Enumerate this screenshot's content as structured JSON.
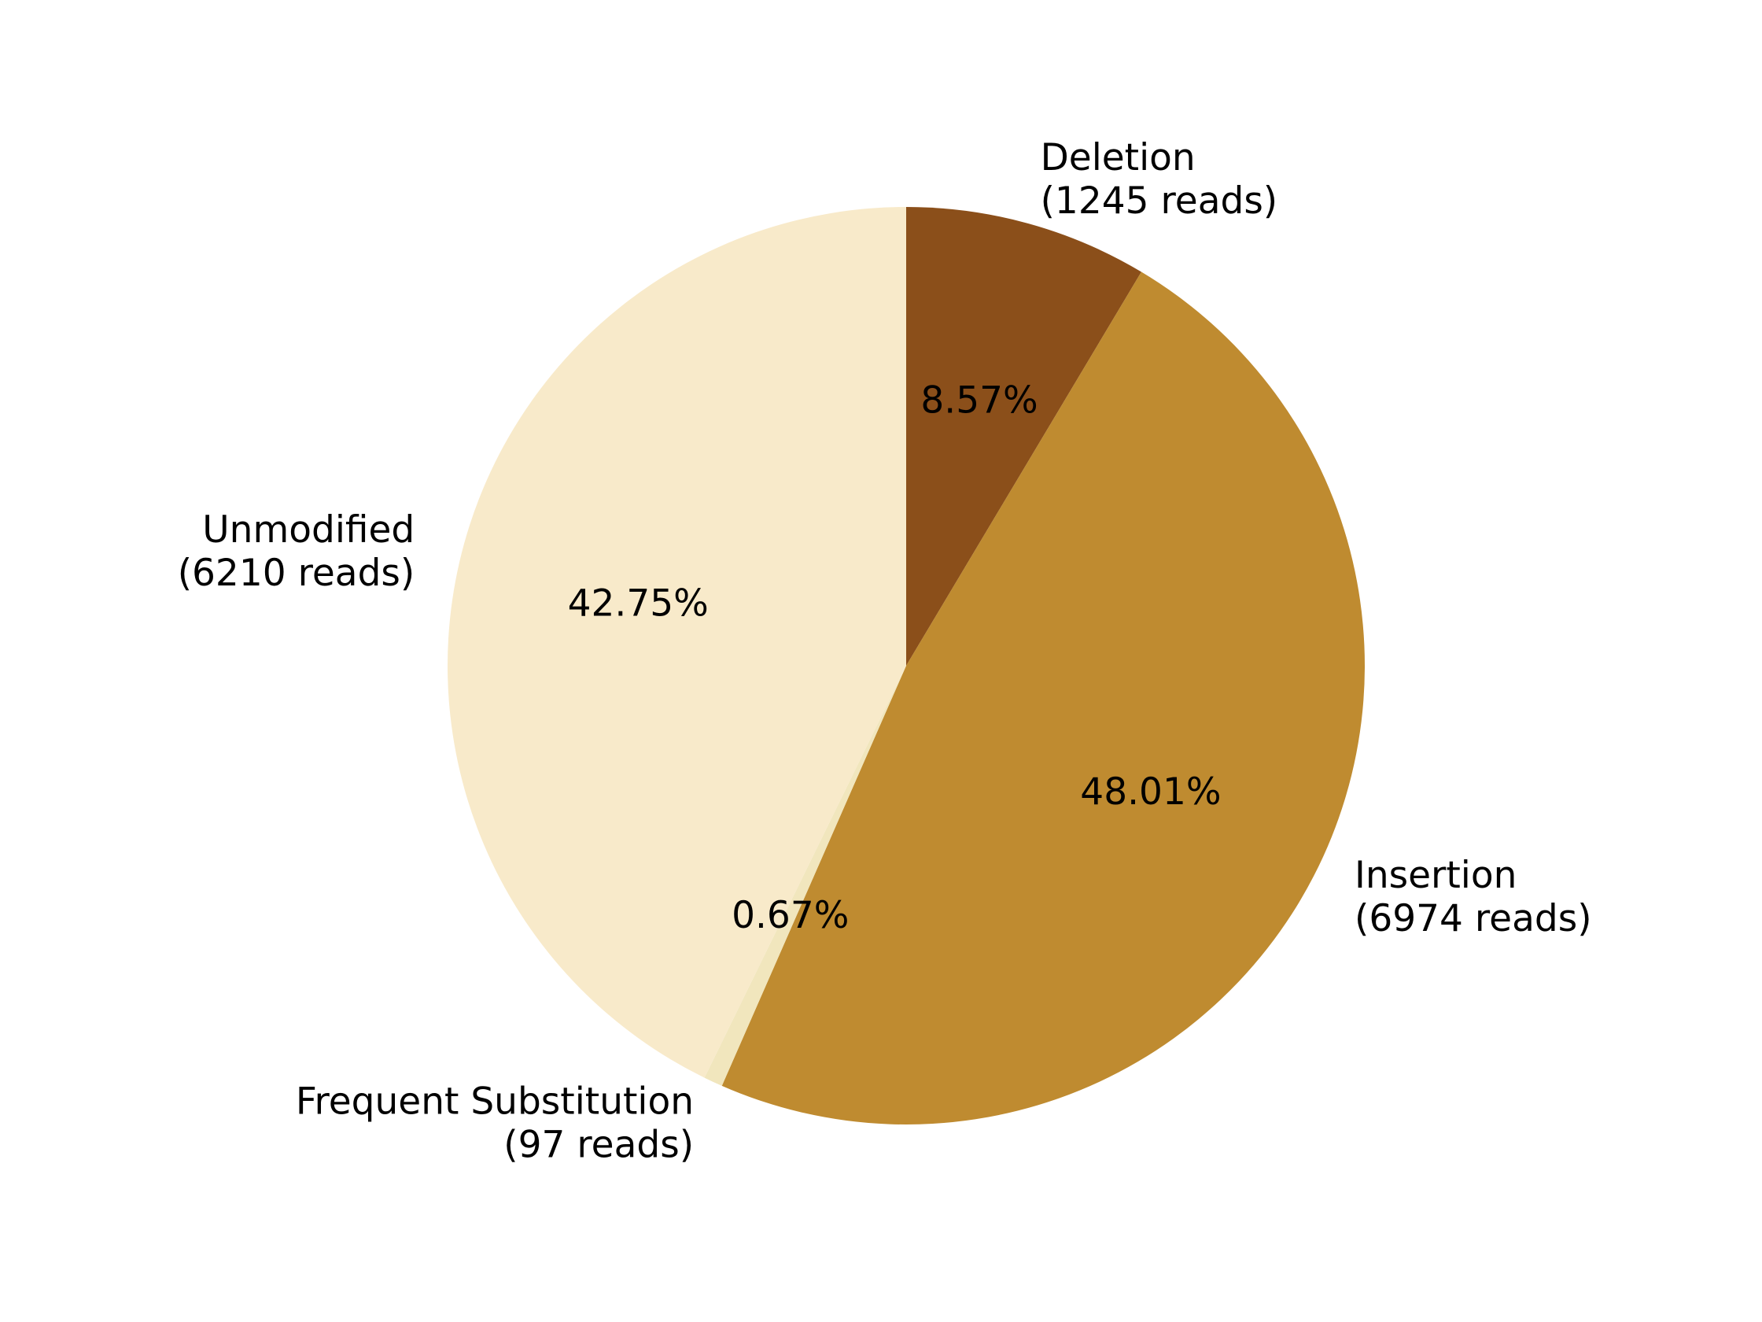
{
  "chart_data": {
    "type": "pie",
    "title": "",
    "start_angle_deg": 90,
    "direction": "clockwise",
    "slices": [
      {
        "label": "Deletion",
        "reads_label": "(1245 reads)",
        "reads": 1245,
        "percent_label": "8.57%",
        "percent": 8.57,
        "color": "#8B4F1A"
      },
      {
        "label": "Insertion",
        "reads_label": "(6974 reads)",
        "reads": 6974,
        "percent_label": "48.01%",
        "percent": 48.01,
        "color": "#BF8B30"
      },
      {
        "label": "Frequent Substitution",
        "reads_label": "(97 reads)",
        "reads": 97,
        "percent_label": "0.67%",
        "percent": 0.67,
        "color": "#F1E6BD"
      },
      {
        "label": "Unmodified",
        "reads_label": "(6210 reads)",
        "reads": 6210,
        "percent_label": "42.75%",
        "percent": 42.75,
        "color": "#F8EACA"
      }
    ]
  }
}
